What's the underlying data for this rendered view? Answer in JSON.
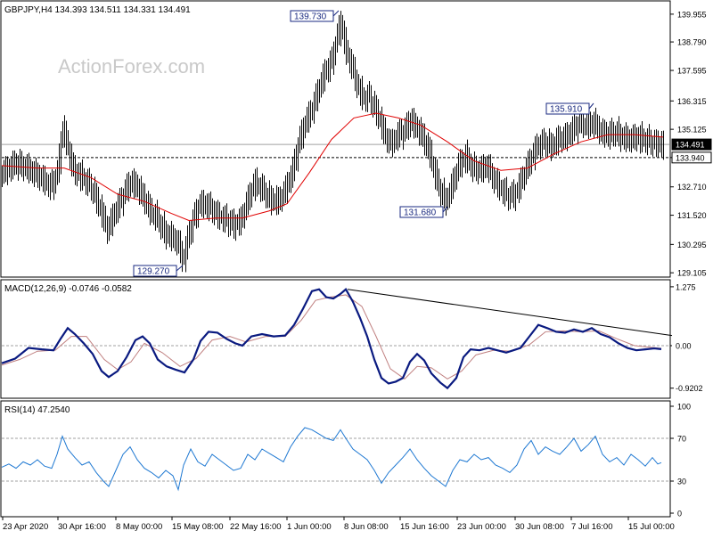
{
  "watermark": "ActionForex.com",
  "chart_data": [
    {
      "type": "candlestick",
      "title": "GBPJPY,H4  134.393 134.511 134.331 134.491",
      "ylim": [
        129.0,
        140.4
      ],
      "y_ticks": [
        "139.955",
        "138.790",
        "137.595",
        "136.315",
        "135.125",
        "133.940",
        "132.710",
        "131.520",
        "130.295",
        "129.105"
      ],
      "y_tick_values": [
        139.955,
        138.79,
        137.595,
        136.315,
        135.125,
        133.94,
        132.71,
        131.52,
        130.295,
        129.105
      ],
      "current_price": {
        "value": 134.491,
        "label": "134.491"
      },
      "support_line": {
        "value": 133.94,
        "label": "133.940"
      },
      "annotations": [
        {
          "label": "139.730",
          "value": 139.73
        },
        {
          "label": "135.910",
          "value": 135.91
        },
        {
          "label": "131.680",
          "value": 131.68
        },
        {
          "label": "129.270",
          "value": 129.27
        }
      ],
      "close_path": [
        [
          0,
          133.3
        ],
        [
          15,
          133.7
        ],
        [
          28,
          133.5
        ],
        [
          40,
          133.2
        ],
        [
          55,
          132.7
        ],
        [
          62,
          133.3
        ],
        [
          68,
          135.2
        ],
        [
          72,
          134.6
        ],
        [
          80,
          133.4
        ],
        [
          90,
          133.1
        ],
        [
          100,
          132.7
        ],
        [
          110,
          131.8
        ],
        [
          118,
          130.9
        ],
        [
          126,
          131.6
        ],
        [
          135,
          132.3
        ],
        [
          143,
          132.9
        ],
        [
          150,
          132.8
        ],
        [
          158,
          132.3
        ],
        [
          166,
          131.7
        ],
        [
          174,
          131.4
        ],
        [
          182,
          130.8
        ],
        [
          190,
          130.6
        ],
        [
          197,
          130.4
        ],
        [
          203,
          129.6
        ],
        [
          208,
          130.5
        ],
        [
          214,
          131.3
        ],
        [
          222,
          132.0
        ],
        [
          232,
          131.9
        ],
        [
          242,
          131.5
        ],
        [
          252,
          131.3
        ],
        [
          260,
          131.1
        ],
        [
          268,
          131.3
        ],
        [
          275,
          132.1
        ],
        [
          283,
          132.9
        ],
        [
          292,
          132.6
        ],
        [
          300,
          132.2
        ],
        [
          310,
          132.1
        ],
        [
          318,
          132.6
        ],
        [
          326,
          133.4
        ],
        [
          333,
          134.6
        ],
        [
          340,
          135.4
        ],
        [
          348,
          136.0
        ],
        [
          355,
          136.8
        ],
        [
          362,
          137.5
        ],
        [
          370,
          138.0
        ],
        [
          375,
          138.9
        ],
        [
          380,
          139.6
        ],
        [
          386,
          138.4
        ],
        [
          392,
          137.8
        ],
        [
          398,
          137.0
        ],
        [
          405,
          136.4
        ],
        [
          412,
          136.5
        ],
        [
          418,
          136.0
        ],
        [
          424,
          135.5
        ],
        [
          430,
          134.8
        ],
        [
          437,
          134.5
        ],
        [
          444,
          134.9
        ],
        [
          452,
          135.1
        ],
        [
          458,
          135.5
        ],
        [
          465,
          135.2
        ],
        [
          472,
          134.8
        ],
        [
          480,
          134.1
        ],
        [
          486,
          133.2
        ],
        [
          492,
          132.5
        ],
        [
          498,
          132.1
        ],
        [
          505,
          132.8
        ],
        [
          512,
          133.6
        ],
        [
          520,
          134.0
        ],
        [
          528,
          133.5
        ],
        [
          536,
          133.4
        ],
        [
          544,
          133.6
        ],
        [
          552,
          133.0
        ],
        [
          560,
          132.6
        ],
        [
          568,
          132.3
        ],
        [
          576,
          132.4
        ],
        [
          584,
          133.1
        ],
        [
          592,
          133.8
        ],
        [
          600,
          134.4
        ],
        [
          608,
          134.6
        ],
        [
          616,
          134.4
        ],
        [
          624,
          134.7
        ],
        [
          632,
          134.8
        ],
        [
          640,
          135.1
        ],
        [
          648,
          135.4
        ],
        [
          656,
          135.3
        ],
        [
          664,
          135.4
        ],
        [
          672,
          135.0
        ],
        [
          680,
          134.9
        ],
        [
          688,
          135.0
        ],
        [
          696,
          134.8
        ],
        [
          704,
          134.7
        ],
        [
          712,
          134.8
        ],
        [
          720,
          134.7
        ],
        [
          728,
          134.6
        ],
        [
          735,
          134.5
        ],
        [
          742,
          134.49
        ]
      ],
      "ma_path": [
        [
          0,
          133.6
        ],
        [
          40,
          133.5
        ],
        [
          70,
          133.5
        ],
        [
          100,
          133.1
        ],
        [
          130,
          132.4
        ],
        [
          160,
          132.1
        ],
        [
          190,
          131.6
        ],
        [
          210,
          131.3
        ],
        [
          240,
          131.4
        ],
        [
          270,
          131.4
        ],
        [
          300,
          131.7
        ],
        [
          320,
          132.0
        ],
        [
          345,
          133.3
        ],
        [
          370,
          134.7
        ],
        [
          395,
          135.6
        ],
        [
          420,
          135.8
        ],
        [
          445,
          135.6
        ],
        [
          470,
          135.3
        ],
        [
          500,
          134.6
        ],
        [
          530,
          133.8
        ],
        [
          560,
          133.4
        ],
        [
          590,
          133.5
        ],
        [
          620,
          134.1
        ],
        [
          650,
          134.6
        ],
        [
          680,
          134.9
        ],
        [
          710,
          134.9
        ],
        [
          742,
          134.8
        ]
      ]
    },
    {
      "type": "line",
      "title": "MACD(12,26,9) -0.0746 -0.0582",
      "ylim": [
        -1.1,
        1.35
      ],
      "y_ticks": [
        "1.275",
        "0.00",
        "-0.9202"
      ],
      "y_tick_values": [
        1.275,
        0.0,
        -0.9202
      ],
      "zero_label": "0.00",
      "trendline": [
        [
          388,
          1.22
        ],
        [
          752,
          0.22
        ]
      ],
      "macd": [
        [
          0,
          -0.38
        ],
        [
          15,
          -0.28
        ],
        [
          30,
          -0.05
        ],
        [
          45,
          -0.08
        ],
        [
          58,
          -0.1
        ],
        [
          66,
          0.15
        ],
        [
          74,
          0.38
        ],
        [
          82,
          0.25
        ],
        [
          92,
          0.05
        ],
        [
          102,
          -0.18
        ],
        [
          112,
          -0.55
        ],
        [
          120,
          -0.68
        ],
        [
          130,
          -0.55
        ],
        [
          140,
          -0.25
        ],
        [
          150,
          0.12
        ],
        [
          158,
          0.2
        ],
        [
          166,
          0.05
        ],
        [
          175,
          -0.3
        ],
        [
          185,
          -0.45
        ],
        [
          195,
          -0.52
        ],
        [
          205,
          -0.58
        ],
        [
          215,
          -0.3
        ],
        [
          223,
          0.1
        ],
        [
          232,
          0.3
        ],
        [
          242,
          0.28
        ],
        [
          252,
          0.15
        ],
        [
          262,
          0.05
        ],
        [
          270,
          0.0
        ],
        [
          280,
          0.2
        ],
        [
          292,
          0.25
        ],
        [
          305,
          0.2
        ],
        [
          318,
          0.22
        ],
        [
          328,
          0.45
        ],
        [
          338,
          0.8
        ],
        [
          348,
          1.18
        ],
        [
          356,
          1.22
        ],
        [
          364,
          1.05
        ],
        [
          372,
          1.02
        ],
        [
          380,
          1.12
        ],
        [
          386,
          1.22
        ],
        [
          394,
          0.95
        ],
        [
          402,
          0.6
        ],
        [
          410,
          0.2
        ],
        [
          418,
          -0.3
        ],
        [
          426,
          -0.7
        ],
        [
          434,
          -0.82
        ],
        [
          442,
          -0.78
        ],
        [
          450,
          -0.7
        ],
        [
          458,
          -0.35
        ],
        [
          466,
          -0.18
        ],
        [
          474,
          -0.32
        ],
        [
          482,
          -0.6
        ],
        [
          492,
          -0.8
        ],
        [
          500,
          -0.92
        ],
        [
          510,
          -0.7
        ],
        [
          518,
          -0.25
        ],
        [
          526,
          -0.08
        ],
        [
          536,
          -0.1
        ],
        [
          546,
          -0.05
        ],
        [
          556,
          -0.1
        ],
        [
          566,
          -0.15
        ],
        [
          574,
          -0.1
        ],
        [
          582,
          -0.05
        ],
        [
          592,
          0.2
        ],
        [
          602,
          0.45
        ],
        [
          612,
          0.38
        ],
        [
          622,
          0.3
        ],
        [
          632,
          0.28
        ],
        [
          642,
          0.35
        ],
        [
          652,
          0.3
        ],
        [
          662,
          0.38
        ],
        [
          672,
          0.25
        ],
        [
          682,
          0.18
        ],
        [
          692,
          0.05
        ],
        [
          702,
          -0.05
        ],
        [
          712,
          -0.1
        ],
        [
          722,
          -0.08
        ],
        [
          732,
          -0.06
        ],
        [
          740,
          -0.0746
        ]
      ],
      "signal": [
        [
          0,
          -0.42
        ],
        [
          20,
          -0.3
        ],
        [
          40,
          -0.12
        ],
        [
          60,
          -0.1
        ],
        [
          78,
          0.2
        ],
        [
          95,
          0.2
        ],
        [
          115,
          -0.3
        ],
        [
          130,
          -0.52
        ],
        [
          145,
          -0.35
        ],
        [
          160,
          0.05
        ],
        [
          180,
          -0.15
        ],
        [
          200,
          -0.45
        ],
        [
          218,
          -0.28
        ],
        [
          236,
          0.12
        ],
        [
          256,
          0.2
        ],
        [
          274,
          0.08
        ],
        [
          296,
          0.2
        ],
        [
          318,
          0.2
        ],
        [
          336,
          0.55
        ],
        [
          352,
          0.98
        ],
        [
          368,
          1.05
        ],
        [
          386,
          1.1
        ],
        [
          404,
          0.85
        ],
        [
          420,
          0.2
        ],
        [
          436,
          -0.5
        ],
        [
          452,
          -0.72
        ],
        [
          466,
          -0.45
        ],
        [
          482,
          -0.48
        ],
        [
          500,
          -0.72
        ],
        [
          516,
          -0.55
        ],
        [
          532,
          -0.2
        ],
        [
          552,
          -0.1
        ],
        [
          572,
          -0.12
        ],
        [
          592,
          0.02
        ],
        [
          610,
          0.3
        ],
        [
          630,
          0.32
        ],
        [
          650,
          0.3
        ],
        [
          670,
          0.32
        ],
        [
          690,
          0.15
        ],
        [
          710,
          0.0
        ],
        [
          740,
          -0.0582
        ]
      ]
    },
    {
      "type": "line",
      "title": "RSI(14) 47.2540",
      "ylim": [
        0,
        100
      ],
      "y_ticks": [
        "100",
        "70",
        "30",
        "0"
      ],
      "y_tick_values": [
        100,
        70,
        30,
        0
      ],
      "levels": [
        70,
        30
      ],
      "rsi": [
        [
          0,
          43
        ],
        [
          8,
          46
        ],
        [
          16,
          42
        ],
        [
          24,
          48
        ],
        [
          32,
          45
        ],
        [
          40,
          50
        ],
        [
          48,
          44
        ],
        [
          56,
          42
        ],
        [
          62,
          55
        ],
        [
          68,
          72
        ],
        [
          74,
          60
        ],
        [
          82,
          52
        ],
        [
          90,
          45
        ],
        [
          98,
          48
        ],
        [
          106,
          38
        ],
        [
          114,
          30
        ],
        [
          120,
          25
        ],
        [
          128,
          40
        ],
        [
          136,
          55
        ],
        [
          144,
          62
        ],
        [
          152,
          50
        ],
        [
          160,
          42
        ],
        [
          168,
          38
        ],
        [
          176,
          33
        ],
        [
          184,
          40
        ],
        [
          192,
          35
        ],
        [
          198,
          22
        ],
        [
          204,
          45
        ],
        [
          212,
          60
        ],
        [
          220,
          48
        ],
        [
          228,
          44
        ],
        [
          236,
          55
        ],
        [
          244,
          50
        ],
        [
          252,
          45
        ],
        [
          260,
          40
        ],
        [
          268,
          42
        ],
        [
          276,
          55
        ],
        [
          284,
          50
        ],
        [
          292,
          60
        ],
        [
          300,
          56
        ],
        [
          308,
          52
        ],
        [
          316,
          48
        ],
        [
          324,
          62
        ],
        [
          332,
          72
        ],
        [
          340,
          80
        ],
        [
          348,
          78
        ],
        [
          356,
          74
        ],
        [
          364,
          70
        ],
        [
          372,
          68
        ],
        [
          380,
          78
        ],
        [
          386,
          70
        ],
        [
          394,
          60
        ],
        [
          402,
          55
        ],
        [
          410,
          50
        ],
        [
          418,
          40
        ],
        [
          426,
          28
        ],
        [
          434,
          38
        ],
        [
          442,
          45
        ],
        [
          450,
          52
        ],
        [
          458,
          60
        ],
        [
          466,
          50
        ],
        [
          474,
          42
        ],
        [
          482,
          35
        ],
        [
          490,
          30
        ],
        [
          498,
          25
        ],
        [
          506,
          40
        ],
        [
          514,
          50
        ],
        [
          522,
          48
        ],
        [
          530,
          55
        ],
        [
          538,
          50
        ],
        [
          546,
          52
        ],
        [
          554,
          45
        ],
        [
          562,
          42
        ],
        [
          570,
          38
        ],
        [
          578,
          45
        ],
        [
          586,
          60
        ],
        [
          594,
          68
        ],
        [
          602,
          55
        ],
        [
          610,
          62
        ],
        [
          618,
          58
        ],
        [
          626,
          55
        ],
        [
          634,
          62
        ],
        [
          642,
          70
        ],
        [
          650,
          58
        ],
        [
          658,
          64
        ],
        [
          666,
          72
        ],
        [
          674,
          55
        ],
        [
          682,
          48
        ],
        [
          690,
          52
        ],
        [
          698,
          45
        ],
        [
          706,
          55
        ],
        [
          714,
          50
        ],
        [
          722,
          44
        ],
        [
          730,
          52
        ],
        [
          736,
          46
        ],
        [
          740,
          47.254
        ]
      ]
    }
  ],
  "x_axis": {
    "labels": [
      "23 Apr 2020",
      "30 Apr 16:00",
      "8 May 00:00",
      "15 May 08:00",
      "22 May 16:00",
      "1 Jun 00:00",
      "8 Jun 08:00",
      "15 Jun 16:00",
      "23 Jun 00:00",
      "30 Jun 08:00",
      "7 Jul 16:00",
      "15 Jul 00:00"
    ]
  }
}
